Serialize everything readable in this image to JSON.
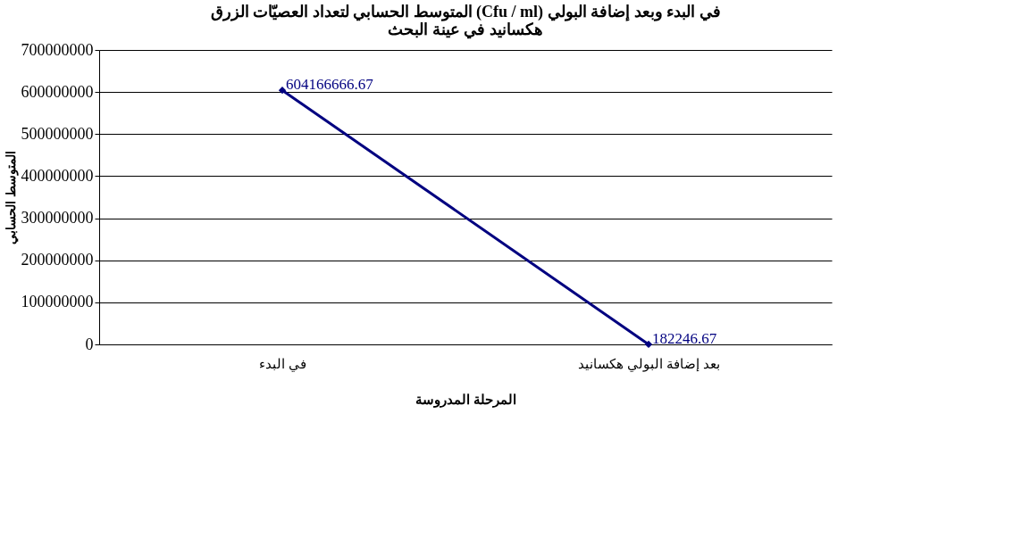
{
  "chart_data": {
    "type": "line",
    "title": [
      "المتوسط الحسابي لتعداد العصيّات الزرق (Cfu / ml) في البدء وبعد إضافة البولي",
      "هكسانيد في عينة البحث"
    ],
    "xlabel": "المرحلة المدروسة",
    "ylabel": "المتوسط الحسابي",
    "categories": [
      "في البدء",
      "بعد إضافة البولي هكسانيد"
    ],
    "series": [
      {
        "color": "#000080",
        "values": [
          604166666.67,
          182246.67
        ],
        "value_labels": [
          "604166666.67",
          "182246.67"
        ]
      }
    ],
    "ylim": [
      0,
      700000000
    ],
    "yticks": [
      0,
      100000000,
      200000000,
      300000000,
      400000000,
      500000000,
      600000000,
      700000000
    ],
    "grid": "y",
    "legend": false,
    "marker": "diamond",
    "line_style": "solid"
  }
}
